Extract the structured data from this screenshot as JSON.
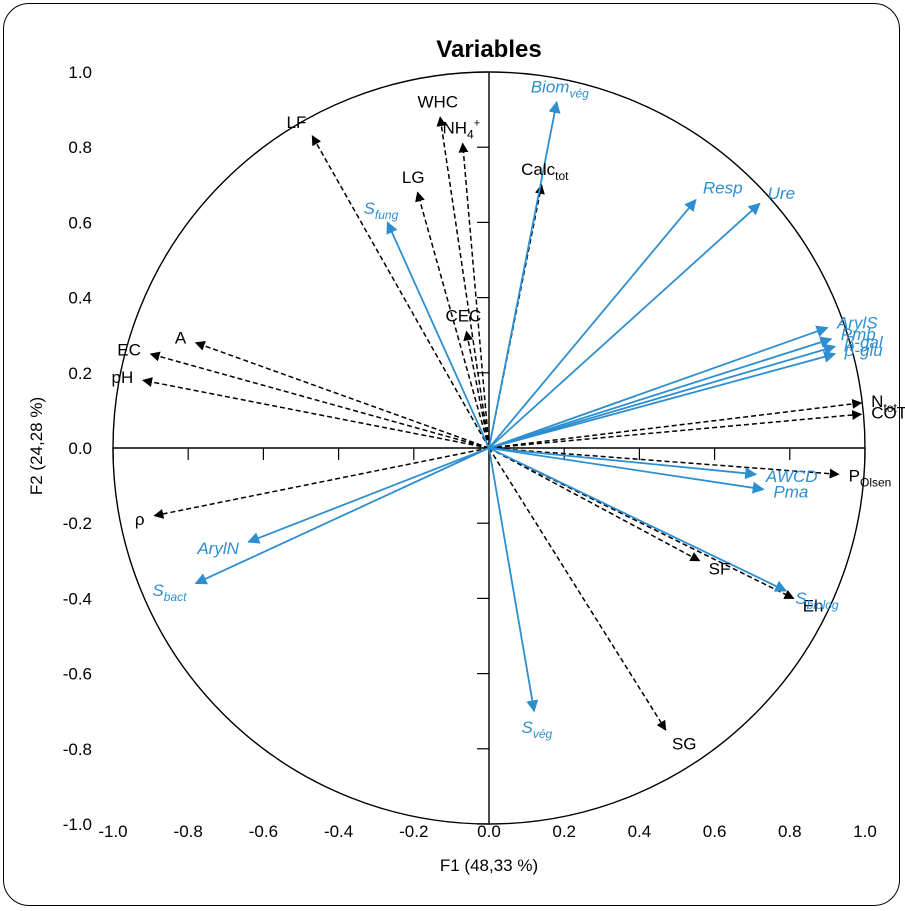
{
  "chart_data": {
    "type": "scatter",
    "subtype": "pca-correlation-circle",
    "title": "Variables",
    "xlabel": "F1 (48,33 %)",
    "ylabel": "F2 (24,28 %)",
    "xlim": [
      -1.0,
      1.0
    ],
    "ylim": [
      -1.0,
      1.0
    ],
    "xticks": [
      "-1.0",
      "-0.8",
      "-0.6",
      "-0.4",
      "-0.2",
      "0.0",
      "0.2",
      "0.4",
      "0.6",
      "0.8",
      "1.0"
    ],
    "yticks": [
      "1.0",
      "0.8",
      "0.6",
      "0.4",
      "0.2",
      "0.0",
      "-0.2",
      "-0.4",
      "-0.6",
      "-0.8",
      "-1.0"
    ],
    "grid": false,
    "colors": {
      "physicochemical": "#000000",
      "biological": "#2e8fd0"
    },
    "series": [
      {
        "group": "physicochemical",
        "line_style": "dashed",
        "vectors": [
          {
            "label": "WHC",
            "sub": "",
            "sup": "",
            "x": -0.13,
            "y": 0.88
          },
          {
            "label": "NH",
            "sub": "4",
            "sup": "+",
            "x": -0.07,
            "y": 0.81
          },
          {
            "label": "LF",
            "sub": "",
            "sup": "",
            "x": -0.47,
            "y": 0.83
          },
          {
            "label": "LG",
            "sub": "",
            "sup": "",
            "x": -0.19,
            "y": 0.68
          },
          {
            "label": "Calc",
            "sub": "tot",
            "sup": "",
            "x": 0.14,
            "y": 0.7
          },
          {
            "label": "CEC",
            "sub": "",
            "sup": "",
            "x": -0.06,
            "y": 0.31
          },
          {
            "label": "EC",
            "sub": "",
            "sup": "",
            "x": -0.9,
            "y": 0.25
          },
          {
            "label": "A",
            "sub": "",
            "sup": "",
            "x": -0.78,
            "y": 0.28
          },
          {
            "label": "pH",
            "sub": "",
            "sup": "",
            "x": -0.92,
            "y": 0.18
          },
          {
            "label": "N",
            "sub": "tot",
            "sup": "",
            "x": 0.99,
            "y": 0.12
          },
          {
            "label": "COT",
            "sub": "",
            "sup": "",
            "x": 0.99,
            "y": 0.09
          },
          {
            "label": "P",
            "sub": "Olsen",
            "sup": "",
            "x": 0.93,
            "y": -0.07
          },
          {
            "label": "ρ",
            "sub": "",
            "sup": "",
            "x": -0.89,
            "y": -0.18
          },
          {
            "label": "SF",
            "sub": "",
            "sup": "",
            "x": 0.56,
            "y": -0.3
          },
          {
            "label": "Eh",
            "sub": "",
            "sup": "",
            "x": 0.81,
            "y": -0.4
          },
          {
            "label": "SG",
            "sub": "",
            "sup": "",
            "x": 0.47,
            "y": -0.75
          }
        ]
      },
      {
        "group": "biological",
        "line_style": "solid",
        "vectors": [
          {
            "label": "Biom",
            "sub": "vég",
            "sup": "",
            "x": 0.18,
            "y": 0.92
          },
          {
            "label": "Resp",
            "sub": "",
            "sup": "",
            "x": 0.55,
            "y": 0.66
          },
          {
            "label": "Ure",
            "sub": "",
            "sup": "",
            "x": 0.72,
            "y": 0.65
          },
          {
            "label": "S",
            "sub": "fung",
            "sup": "",
            "x": -0.27,
            "y": 0.6
          },
          {
            "label": "ArylS",
            "sub": "",
            "sup": "",
            "x": 0.9,
            "y": 0.32
          },
          {
            "label": "Pmb",
            "sub": "",
            "sup": "",
            "x": 0.91,
            "y": 0.29
          },
          {
            "label": "β-gal",
            "sub": "",
            "sup": "",
            "x": 0.92,
            "y": 0.27
          },
          {
            "label": "β-glu",
            "sub": "",
            "sup": "",
            "x": 0.92,
            "y": 0.25
          },
          {
            "label": "AWCD",
            "sub": "",
            "sup": "",
            "x": 0.71,
            "y": -0.07
          },
          {
            "label": "Pma",
            "sub": "",
            "sup": "",
            "x": 0.73,
            "y": -0.11
          },
          {
            "label": "S",
            "sub": "biolog",
            "sup": "",
            "x": 0.79,
            "y": -0.38
          },
          {
            "label": "ArylN",
            "sub": "",
            "sup": "",
            "x": -0.64,
            "y": -0.25
          },
          {
            "label": "S",
            "sub": "bact",
            "sup": "",
            "x": -0.78,
            "y": -0.36
          },
          {
            "label": "S",
            "sub": "vég",
            "sup": "",
            "x": 0.12,
            "y": -0.7
          }
        ]
      }
    ]
  }
}
